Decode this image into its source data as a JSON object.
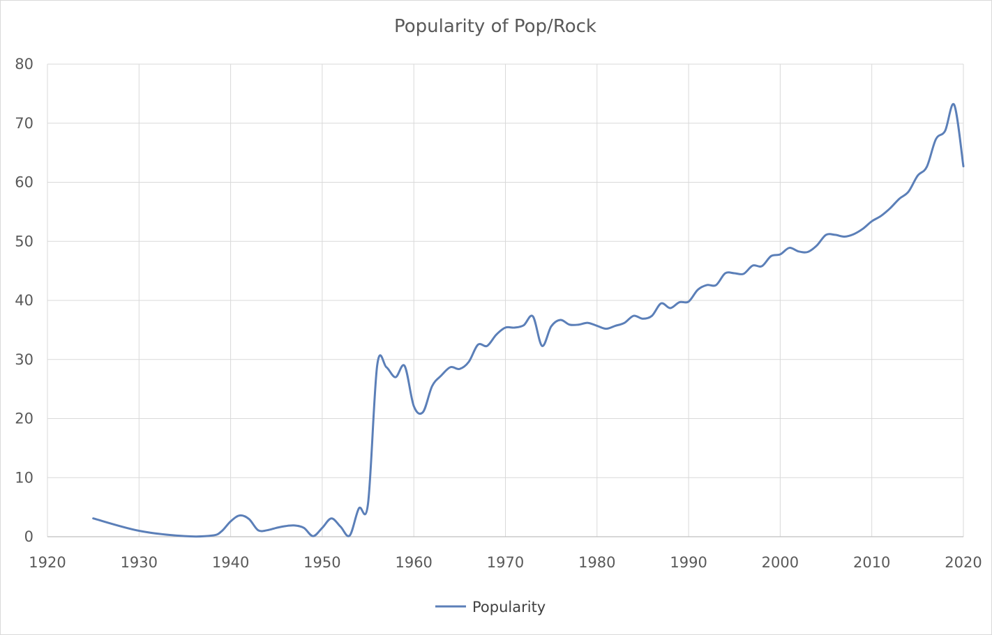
{
  "chart_data": {
    "type": "line",
    "title": "Popularity of Pop/Rock",
    "xlabel": "",
    "ylabel": "",
    "xlim": [
      1920,
      2020
    ],
    "ylim": [
      0,
      80
    ],
    "x_ticks": [
      1920,
      1930,
      1940,
      1950,
      1960,
      1970,
      1980,
      1990,
      2000,
      2010,
      2020
    ],
    "y_ticks": [
      0,
      10,
      20,
      30,
      40,
      50,
      60,
      70,
      80
    ],
    "grid": true,
    "smooth": true,
    "legend": {
      "position": "bottom"
    },
    "series": [
      {
        "name": "Popularity",
        "color": "#5b7fb8",
        "points": [
          [
            1925,
            3.1
          ],
          [
            1930,
            1.0
          ],
          [
            1935,
            0.1
          ],
          [
            1938,
            0.2
          ],
          [
            1939,
            0.9
          ],
          [
            1940,
            2.6
          ],
          [
            1941,
            3.6
          ],
          [
            1942,
            3.0
          ],
          [
            1943,
            1.1
          ],
          [
            1944,
            1.1
          ],
          [
            1945,
            1.5
          ],
          [
            1946,
            1.8
          ],
          [
            1947,
            1.9
          ],
          [
            1948,
            1.5
          ],
          [
            1949,
            0.1
          ],
          [
            1950,
            1.5
          ],
          [
            1951,
            3.1
          ],
          [
            1952,
            1.7
          ],
          [
            1953,
            0.2
          ],
          [
            1954,
            4.8
          ],
          [
            1955,
            5.6
          ],
          [
            1956,
            29.0
          ],
          [
            1957,
            28.7
          ],
          [
            1958,
            27.0
          ],
          [
            1959,
            28.9
          ],
          [
            1960,
            22.1
          ],
          [
            1961,
            21.1
          ],
          [
            1962,
            25.5
          ],
          [
            1963,
            27.3
          ],
          [
            1964,
            28.7
          ],
          [
            1965,
            28.4
          ],
          [
            1966,
            29.6
          ],
          [
            1967,
            32.5
          ],
          [
            1968,
            32.3
          ],
          [
            1969,
            34.2
          ],
          [
            1970,
            35.4
          ],
          [
            1971,
            35.4
          ],
          [
            1972,
            35.8
          ],
          [
            1973,
            37.3
          ],
          [
            1974,
            32.3
          ],
          [
            1975,
            35.6
          ],
          [
            1976,
            36.7
          ],
          [
            1977,
            35.9
          ],
          [
            1978,
            35.9
          ],
          [
            1979,
            36.2
          ],
          [
            1980,
            35.7
          ],
          [
            1981,
            35.2
          ],
          [
            1982,
            35.7
          ],
          [
            1983,
            36.2
          ],
          [
            1984,
            37.4
          ],
          [
            1985,
            36.9
          ],
          [
            1986,
            37.4
          ],
          [
            1987,
            39.5
          ],
          [
            1988,
            38.7
          ],
          [
            1989,
            39.7
          ],
          [
            1990,
            39.8
          ],
          [
            1991,
            41.8
          ],
          [
            1992,
            42.6
          ],
          [
            1993,
            42.6
          ],
          [
            1994,
            44.6
          ],
          [
            1995,
            44.6
          ],
          [
            1996,
            44.5
          ],
          [
            1997,
            45.9
          ],
          [
            1998,
            45.8
          ],
          [
            1999,
            47.5
          ],
          [
            2000,
            47.8
          ],
          [
            2001,
            48.9
          ],
          [
            2002,
            48.3
          ],
          [
            2003,
            48.2
          ],
          [
            2004,
            49.3
          ],
          [
            2005,
            51.1
          ],
          [
            2006,
            51.1
          ],
          [
            2007,
            50.8
          ],
          [
            2008,
            51.2
          ],
          [
            2009,
            52.1
          ],
          [
            2010,
            53.4
          ],
          [
            2011,
            54.3
          ],
          [
            2012,
            55.6
          ],
          [
            2013,
            57.2
          ],
          [
            2014,
            58.4
          ],
          [
            2015,
            61.1
          ],
          [
            2016,
            62.6
          ],
          [
            2017,
            67.3
          ],
          [
            2018,
            68.7
          ],
          [
            2019,
            73.1
          ],
          [
            2020,
            62.7
          ]
        ]
      }
    ]
  }
}
